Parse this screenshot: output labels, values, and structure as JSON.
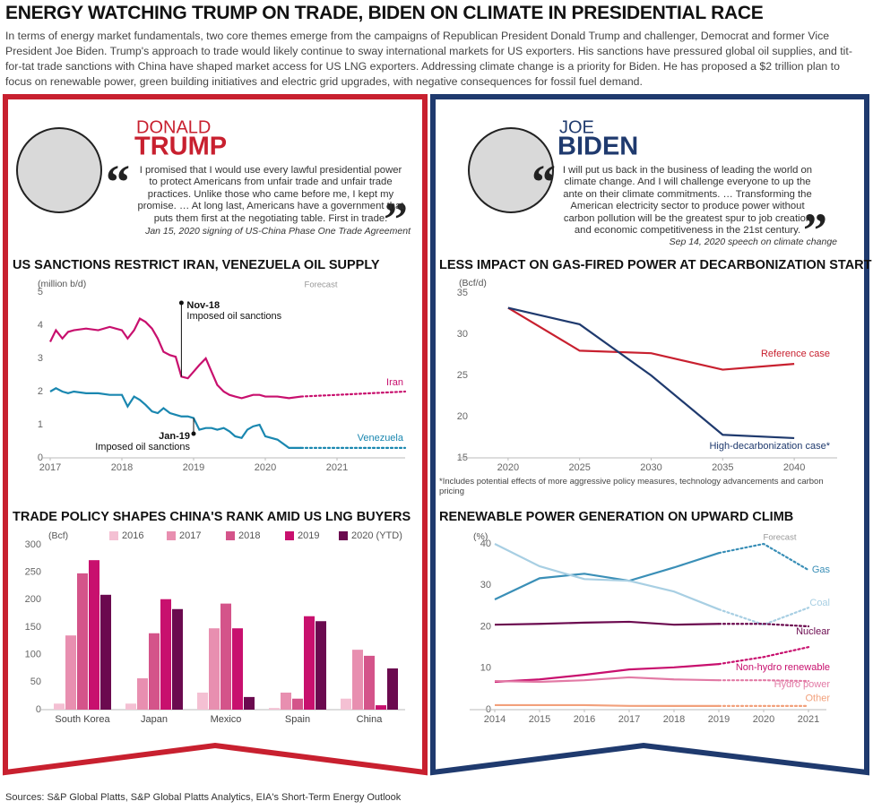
{
  "header": {
    "title": "ENERGY WATCHING TRUMP ON TRADE, BIDEN ON CLIMATE IN PRESIDENTIAL RACE",
    "intro": "In terms of energy market fundamentals, two core themes emerge from the campaigns of Republican President Donald Trump and challenger, Democrat and former Vice President Joe Biden. Trump's approach to trade would likely continue to sway international markets for US exporters. His sanctions have pressured global oil supplies, and tit-for-tat trade sanctions with China have shaped market access for US LNG exporters. Addressing climate change is a priority for Biden. He has proposed a $2 trillion plan to focus on renewable power, green building initiatives and electric grid upgrades, with negative consequences for fossil fuel demand."
  },
  "candidates": [
    {
      "first": "DONALD",
      "last": "TRUMP",
      "quote": "I promised that I would use every lawful presidential power to protect Americans from unfair trade and unfair trade practices. Unlike those who came before me, I kept my promise. … At long last, Americans have a government that puts them first at the negotiating table. First in trade.",
      "source": "Jan 15, 2020 signing of US-China Phase One Trade Agreement"
    },
    {
      "first": "JOE",
      "last": "BIDEN",
      "quote": "I will put us back in the business of leading the world on climate change. And I will challenge everyone to up the ante on their climate commitments. … Transforming the American electricity sector to produce power without carbon pollution will be the greatest spur to job creation and economic competitiveness in the 21st century.",
      "source": "Sep 14, 2020 speech on climate change"
    }
  ],
  "chart_data": [
    {
      "type": "line",
      "title": "US SANCTIONS RESTRICT IRAN, VENEZUELA OIL SUPPLY",
      "y_label": "(million b/d)",
      "x": [
        2017,
        2017.08,
        2017.17,
        2017.25,
        2017.33,
        2017.5,
        2017.67,
        2017.83,
        2018,
        2018.08,
        2018.17,
        2018.25,
        2018.33,
        2018.42,
        2018.5,
        2018.58,
        2018.67,
        2018.75,
        2018.83,
        2018.92,
        2019,
        2019.08,
        2019.17,
        2019.25,
        2019.33,
        2019.42,
        2019.5,
        2019.58,
        2019.67,
        2019.75,
        2019.83,
        2019.92,
        2020,
        2020.17,
        2020.33,
        2020.5,
        2021,
        2021.95
      ],
      "series": [
        {
          "name": "Iran",
          "color": "#c8106e",
          "values": [
            3.5,
            3.85,
            3.6,
            3.8,
            3.85,
            3.9,
            3.85,
            3.95,
            3.85,
            3.6,
            3.85,
            4.2,
            4.1,
            3.9,
            3.6,
            3.2,
            3.1,
            3.05,
            2.45,
            2.4,
            2.6,
            2.8,
            3.0,
            2.6,
            2.2,
            2.0,
            1.9,
            1.85,
            1.8,
            1.85,
            1.9,
            1.9,
            1.85,
            1.85,
            1.8,
            1.85,
            1.9,
            2.0
          ]
        },
        {
          "name": "Venezuela",
          "color": "#1a87b0",
          "values": [
            2.0,
            2.1,
            2.0,
            1.95,
            2.0,
            1.95,
            1.95,
            1.9,
            1.9,
            1.55,
            1.85,
            1.75,
            1.6,
            1.4,
            1.35,
            1.5,
            1.35,
            1.3,
            1.25,
            1.25,
            1.2,
            0.85,
            0.9,
            0.9,
            0.85,
            0.9,
            0.8,
            0.65,
            0.6,
            0.85,
            0.95,
            1.0,
            0.65,
            0.55,
            0.3,
            0.3,
            0.3,
            0.3
          ]
        }
      ],
      "forecast_from": 2020.5,
      "forecast_label": "Forecast",
      "annotations": [
        {
          "title": "Nov-18",
          "text": "Imposed oil sanctions",
          "x": 2018.83
        },
        {
          "title": "Jan-19",
          "text": "Imposed oil sanctions",
          "x": 2019
        }
      ],
      "xlim": [
        2017,
        2021.95
      ],
      "xticks": [
        2017,
        2018,
        2019,
        2020,
        2021
      ],
      "ylim": [
        0,
        5
      ],
      "yticks": [
        0,
        1,
        2,
        3,
        4,
        5
      ],
      "grid": false
    },
    {
      "type": "line",
      "title": "LESS IMPACT ON GAS-FIRED POWER AT DECARBONIZATION START",
      "y_label": "(Bcf/d)",
      "x": [
        2020,
        2025,
        2030,
        2035,
        2040
      ],
      "series": [
        {
          "name": "Reference case",
          "color": "#c8202f",
          "values": [
            33.2,
            28,
            27.7,
            25.7,
            26.4
          ]
        },
        {
          "name": "High-decarbonization case*",
          "color": "#1f3a6e",
          "values": [
            33.2,
            31.2,
            25,
            17.8,
            17.4
          ]
        }
      ],
      "note": "*Includes potential effects of more aggressive policy measures, technology advancements and carbon pricing",
      "xlim": [
        2017,
        2043
      ],
      "xticks": [
        2020,
        2025,
        2030,
        2035,
        2040
      ],
      "ylim": [
        15,
        35
      ],
      "yticks": [
        15,
        20,
        25,
        30,
        35
      ],
      "grid": false
    },
    {
      "type": "bar",
      "title": "TRADE POLICY SHAPES CHINA'S RANK AMID US LNG BUYERS",
      "y_label": "(Bcf)",
      "categories": [
        "South Korea",
        "Japan",
        "Mexico",
        "Spain",
        "China"
      ],
      "series": [
        {
          "name": "2016",
          "color": "#f4c0d3",
          "values": [
            11,
            11,
            31,
            3,
            20
          ]
        },
        {
          "name": "2017",
          "color": "#e88fb0",
          "values": [
            135,
            57,
            148,
            31,
            109
          ]
        },
        {
          "name": "2018",
          "color": "#d4548a",
          "values": [
            248,
            139,
            193,
            20,
            98
          ]
        },
        {
          "name": "2019",
          "color": "#c8106e",
          "values": [
            272,
            201,
            148,
            170,
            8
          ]
        },
        {
          "name": "2020 (YTD)",
          "color": "#6b0a4f",
          "values": [
            209,
            183,
            23,
            161,
            75
          ]
        }
      ],
      "ylim": [
        0,
        300
      ],
      "yticks": [
        0,
        50,
        100,
        150,
        200,
        250,
        300
      ],
      "grid": false
    },
    {
      "type": "line",
      "title": "RENEWABLE POWER GENERATION ON UPWARD CLIMB",
      "y_label": "(%)",
      "x": [
        2014,
        2015,
        2016,
        2017,
        2018,
        2019,
        2020,
        2021
      ],
      "series": [
        {
          "name": "Gas",
          "color": "#3a8fb7",
          "values": [
            26.6,
            31.7,
            32.8,
            31.1,
            34.3,
            37.8,
            40,
            33.7
          ]
        },
        {
          "name": "Coal",
          "color": "#a8cfe3",
          "values": [
            40,
            34.6,
            31.5,
            31.1,
            28.5,
            24.2,
            20.5,
            24.6
          ]
        },
        {
          "name": "Nuclear",
          "color": "#6b0a4f",
          "values": [
            20.5,
            20.7,
            21,
            21.2,
            20.5,
            20.7,
            20.7,
            20.1
          ]
        },
        {
          "name": "Non-hydro renewable",
          "color": "#c8106e",
          "values": [
            6.7,
            7.3,
            8.4,
            9.7,
            10.2,
            11,
            12.7,
            15.1
          ]
        },
        {
          "name": "Hydro power",
          "color": "#e27aa5",
          "values": [
            6.9,
            6.7,
            7.1,
            7.8,
            7.3,
            7.1,
            7.1,
            6.9
          ]
        },
        {
          "name": "Other",
          "color": "#f2a07b",
          "values": [
            1.1,
            1.1,
            1.1,
            0.9,
            0.9,
            0.9,
            0.9,
            0.9
          ]
        }
      ],
      "forecast_from": 2019,
      "forecast_label": "Forecast",
      "xlim": [
        2013.6,
        2021.4
      ],
      "xticks": [
        2014,
        2015,
        2016,
        2017,
        2018,
        2019,
        2020,
        2021
      ],
      "ylim": [
        0,
        40
      ],
      "yticks": [
        0,
        10,
        20,
        30,
        40
      ],
      "grid": false
    }
  ],
  "footer": "Sources: S&P Global Platts, S&P Global Platts Analytics, EIA's Short-Term Energy Outlook"
}
